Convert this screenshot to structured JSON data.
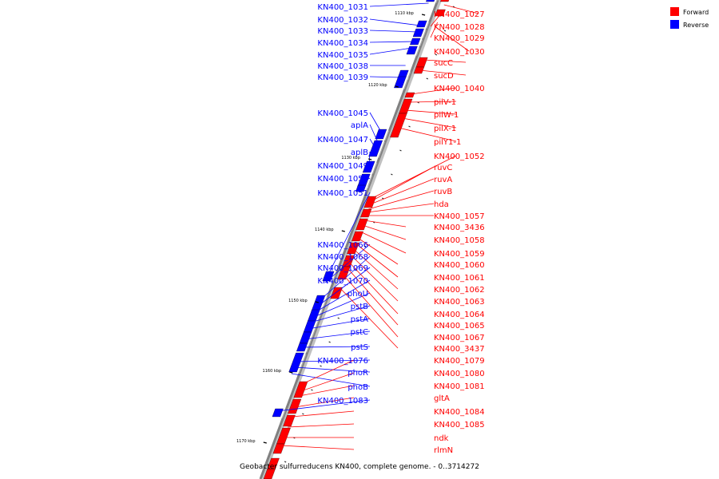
{
  "caption": "Geobacter sulfurreducens KN400, complete genome. - 0..3714272",
  "legend": [
    {
      "label": "Forward",
      "color": "#ff0000"
    },
    {
      "label": "Reverse",
      "color": "#0000ff"
    }
  ],
  "colors": {
    "forward": "#ff0000",
    "reverse": "#0000ff",
    "backbone": "#808080"
  },
  "kbp_labels": [
    "1110 kbp",
    "1120 kbp",
    "1130 kbp",
    "1140 kbp",
    "1150 kbp",
    "1160 kbp",
    "1170 kbp"
  ],
  "reverse_genes": [
    "KN400_1031",
    "KN400_1032",
    "KN400_1033",
    "KN400_1034",
    "KN400_1035",
    "KN400_1038",
    "KN400_1039",
    "KN400_1045",
    "aplA",
    "KN400_1047",
    "aplB",
    "KN400_1049",
    "KN400_1050",
    "KN400_1051",
    "KN400_1066",
    "KN400_1068",
    "KN400_1069",
    "KN400_1070",
    "phoU",
    "pstB",
    "pstA",
    "pstC",
    "pstS",
    "KN400_1076",
    "phoR",
    "phoB",
    "KN400_1083"
  ],
  "forward_genes": [
    "KN400_1027",
    "KN400_1028",
    "KN400_1029",
    "KN400_1030",
    "sucC",
    "sucD",
    "KN400_1040",
    "pilV-1",
    "pilW-1",
    "pilX-1",
    "pilY1-1",
    "KN400_1052",
    "ruvC",
    "ruvA",
    "ruvB",
    "hda",
    "KN400_1057",
    "KN400_3436",
    "KN400_1058",
    "KN400_1059",
    "KN400_1060",
    "KN400_1061",
    "KN400_1062",
    "KN400_1063",
    "KN400_1064",
    "KN400_1065",
    "KN400_1067",
    "KN400_3437",
    "KN400_1079",
    "KN400_1080",
    "KN400_1081",
    "gltA",
    "KN400_1084",
    "KN400_1085",
    "ndk",
    "rlmN"
  ]
}
